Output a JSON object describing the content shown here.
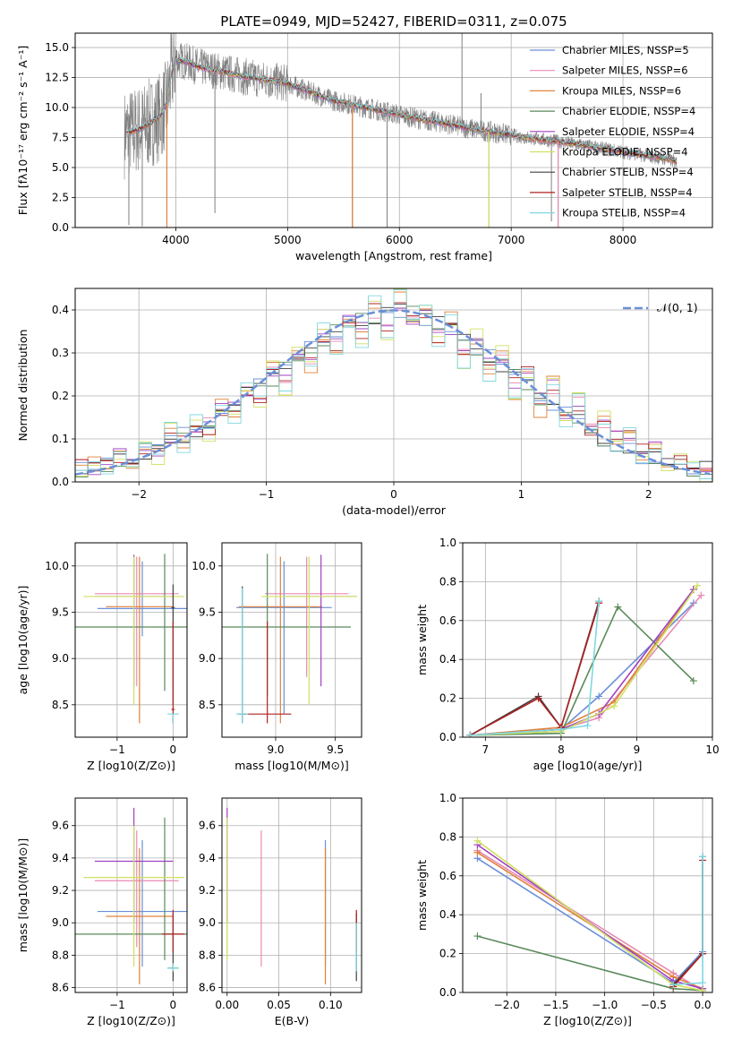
{
  "colors": {
    "chabrier_miles": "#6a8fd8",
    "salpeter_miles": "#e88ab4",
    "kroupa_miles": "#e0823a",
    "chabrier_elodie": "#5a8a5a",
    "salpeter_elodie": "#a040c0",
    "kroupa_elodie": "#d0e060",
    "chabrier_stelib": "#404040",
    "salpeter_stelib": "#b02020",
    "kroupa_stelib": "#80d8e0",
    "data": "#808080",
    "normal": "#6a8fd8",
    "grid": "#b0b0b0"
  },
  "chart_data": [
    {
      "type": "line",
      "title": "PLATE=0949, MJD=52427, FIBERID=0311, z=0.075",
      "xlabel": "wavelength [Angstrom, rest frame]",
      "ylabel": "Flux [fλ10⁻¹⁷ erg cm⁻² s⁻¹ A⁻¹]",
      "xlim": [
        3100,
        8800
      ],
      "ylim": [
        0,
        16.2
      ],
      "xticks": [
        4000,
        5000,
        6000,
        7000,
        8000
      ],
      "yticks": [
        0.0,
        2.5,
        5.0,
        7.5,
        10.0,
        12.5,
        15.0
      ],
      "grid": true,
      "legend_position": "top-right",
      "legend": [
        "Chabrier MILES, NSSP=5",
        "Salpeter MILES, NSSP=6",
        "Kroupa MILES, NSSP=6",
        "Chabrier ELODIE, NSSP=4",
        "Salpeter ELODIE, NSSP=4",
        "Kroupa ELODIE, NSSP=4",
        "Chabrier STELIB, NSSP=4",
        "Salpeter STELIB, NSSP=4",
        "Kroupa STELIB, NSSP=4"
      ],
      "model_continuum": {
        "x": [
          3550,
          3700,
          3850,
          3920,
          3960,
          4000,
          4100,
          4200,
          4400,
          4600,
          4800,
          5000,
          5200,
          5400,
          5600,
          5800,
          6000,
          6200,
          6400,
          6600,
          6800,
          7000,
          7200,
          7400,
          7600,
          7800,
          8000,
          8200,
          8400,
          8500
        ],
        "y": [
          7.8,
          8.3,
          9.2,
          10.3,
          12.8,
          14.0,
          13.8,
          13.4,
          13.0,
          12.6,
          12.3,
          12.0,
          11.3,
          10.6,
          10.2,
          9.8,
          9.4,
          9.0,
          8.7,
          8.3,
          8.0,
          7.7,
          7.4,
          7.2,
          6.9,
          6.6,
          6.3,
          6.0,
          5.7,
          5.4
        ]
      },
      "data_spikes": [
        {
          "x": 3580,
          "y": 0.2
        },
        {
          "x": 3700,
          "y": 0.1
        },
        {
          "x": 4350,
          "y": 1.2
        },
        {
          "x": 5580,
          "y": 0.0
        },
        {
          "x": 5890,
          "y": 0.0
        },
        {
          "x": 6560,
          "y": 16.2
        },
        {
          "x": 6730,
          "y": 11.2
        },
        {
          "x": 6800,
          "y": 0.0
        },
        {
          "x": 7360,
          "y": 0.5
        },
        {
          "x": 7420,
          "y": 0.0
        }
      ]
    },
    {
      "type": "bar",
      "xlabel": "(data-model)/error",
      "ylabel": "Normed distribution",
      "xlim": [
        -2.5,
        2.5
      ],
      "ylim": [
        0,
        0.45
      ],
      "xticks": [
        -2,
        -1,
        0,
        1,
        2
      ],
      "yticks": [
        0.0,
        0.1,
        0.2,
        0.3,
        0.4
      ],
      "grid": true,
      "legend": [
        "𝒩(0, 1)"
      ],
      "legend_position": "top-right",
      "bin_edges": [
        -2.5,
        -2.4,
        -2.3,
        -2.2,
        -2.1,
        -2.0,
        -1.9,
        -1.8,
        -1.7,
        -1.6,
        -1.5,
        -1.4,
        -1.3,
        -1.2,
        -1.1,
        -1.0,
        -0.9,
        -0.8,
        -0.7,
        -0.6,
        -0.5,
        -0.4,
        -0.3,
        -0.2,
        -0.1,
        0.0,
        0.1,
        0.2,
        0.3,
        0.4,
        0.5,
        0.6,
        0.7,
        0.8,
        0.9,
        1.0,
        1.1,
        1.2,
        1.3,
        1.4,
        1.5,
        1.6,
        1.7,
        1.8,
        1.9,
        2.0,
        2.1,
        2.2,
        2.3,
        2.4,
        2.5
      ],
      "series": [
        {
          "values": [
            0.03,
            0.04,
            0.04,
            0.05,
            0.06,
            0.07,
            0.08,
            0.09,
            0.11,
            0.12,
            0.14,
            0.15,
            0.18,
            0.2,
            0.22,
            0.24,
            0.26,
            0.29,
            0.31,
            0.33,
            0.35,
            0.37,
            0.38,
            0.38,
            0.39,
            0.4,
            0.39,
            0.38,
            0.37,
            0.35,
            0.33,
            0.31,
            0.29,
            0.27,
            0.25,
            0.22,
            0.2,
            0.18,
            0.16,
            0.14,
            0.12,
            0.1,
            0.09,
            0.07,
            0.06,
            0.05,
            0.04,
            0.04,
            0.03,
            0.03
          ]
        },
        {
          "values": [
            0.04,
            0.03,
            0.05,
            0.06,
            0.05,
            0.08,
            0.07,
            0.1,
            0.1,
            0.13,
            0.13,
            0.17,
            0.17,
            0.21,
            0.2,
            0.25,
            0.24,
            0.3,
            0.28,
            0.34,
            0.32,
            0.38,
            0.35,
            0.4,
            0.37,
            0.41,
            0.38,
            0.4,
            0.34,
            0.36,
            0.3,
            0.33,
            0.27,
            0.29,
            0.23,
            0.25,
            0.19,
            0.22,
            0.15,
            0.18,
            0.12,
            0.14,
            0.1,
            0.11,
            0.07,
            0.08,
            0.05,
            0.06,
            0.04,
            0.03
          ]
        },
        {
          "values": [
            0.02,
            0.05,
            0.03,
            0.07,
            0.04,
            0.09,
            0.06,
            0.12,
            0.08,
            0.14,
            0.11,
            0.18,
            0.14,
            0.23,
            0.18,
            0.27,
            0.21,
            0.31,
            0.26,
            0.35,
            0.3,
            0.37,
            0.33,
            0.42,
            0.35,
            0.43,
            0.36,
            0.41,
            0.32,
            0.38,
            0.28,
            0.34,
            0.25,
            0.3,
            0.21,
            0.26,
            0.17,
            0.23,
            0.14,
            0.19,
            0.11,
            0.15,
            0.08,
            0.12,
            0.06,
            0.09,
            0.04,
            0.06,
            0.03,
            0.02
          ]
        }
      ],
      "normal": {
        "mu": 0,
        "sigma": 1
      }
    },
    {
      "type": "scatter",
      "xlabel": "Z [log10(Z/Z⊙)]",
      "ylabel": "age  [log10(age/yr)]",
      "xlim": [
        -1.75,
        0.25
      ],
      "ylim": [
        8.15,
        10.25
      ],
      "xticks": [
        -1,
        0
      ],
      "yticks": [
        8.5,
        9.0,
        9.5,
        10.0
      ],
      "grid": true,
      "points": [
        {
          "x": -0.55,
          "y": 9.54,
          "xerr": 0.8,
          "yerr_lo": 9.24,
          "yerr_hi": 10.05,
          "color": "chabrier_miles"
        },
        {
          "x": -0.65,
          "y": 9.7,
          "xerr": 0.75,
          "yerr_lo": 8.7,
          "yerr_hi": 10.1,
          "color": "salpeter_miles"
        },
        {
          "x": -0.6,
          "y": 9.56,
          "xerr": 0.6,
          "yerr_lo": 8.3,
          "yerr_hi": 10.1,
          "color": "kroupa_miles"
        },
        {
          "x": -0.15,
          "y": 9.34,
          "xerr": 1.6,
          "yerr_lo": 8.65,
          "yerr_hi": 10.13,
          "color": "chabrier_elodie"
        },
        {
          "x": -0.7,
          "y": 9.67,
          "xerr": 0.7,
          "yerr_lo": 8.7,
          "yerr_hi": 10.12,
          "color": "salpeter_elodie"
        },
        {
          "x": -0.7,
          "y": 9.67,
          "xerr": 0.9,
          "yerr_lo": 8.5,
          "yerr_hi": 10.1,
          "color": "kroupa_elodie"
        },
        {
          "x": 0.0,
          "y": 9.55,
          "xerr": 0.03,
          "yerr_lo": 8.5,
          "yerr_hi": 9.8,
          "color": "chabrier_stelib"
        },
        {
          "x": 0.0,
          "y": 8.45,
          "xerr": 0.03,
          "yerr_lo": 8.3,
          "yerr_hi": 9.4,
          "color": "salpeter_stelib"
        },
        {
          "x": 0.0,
          "y": 8.4,
          "xerr": 0.1,
          "yerr_lo": 8.3,
          "yerr_hi": 8.4,
          "color": "kroupa_stelib"
        }
      ]
    },
    {
      "type": "scatter",
      "xlabel": "mass [log10(M/M⊙)]",
      "ylabel": "",
      "xlim": [
        8.55,
        9.72
      ],
      "ylim": [
        8.15,
        10.25
      ],
      "xticks": [
        9.0,
        9.5
      ],
      "yticks": [
        8.5,
        9.0,
        9.5,
        10.0
      ],
      "grid": true,
      "points": [
        {
          "x": 9.07,
          "y": 9.55,
          "xerr": 0.4,
          "yerr_lo": 8.4,
          "yerr_hi": 10.05,
          "color": "chabrier_miles"
        },
        {
          "x": 9.26,
          "y": 9.7,
          "xerr": 0.35,
          "yerr_lo": 8.8,
          "yerr_hi": 10.1,
          "color": "salpeter_miles"
        },
        {
          "x": 9.04,
          "y": 9.56,
          "xerr": 0.35,
          "yerr_lo": 8.3,
          "yerr_hi": 10.1,
          "color": "kroupa_miles"
        },
        {
          "x": 8.93,
          "y": 9.34,
          "xerr": 0.7,
          "yerr_lo": 8.6,
          "yerr_hi": 10.13,
          "color": "chabrier_elodie"
        },
        {
          "x": 9.38,
          "y": 9.67,
          "xerr": 0.3,
          "yerr_lo": 8.7,
          "yerr_hi": 10.12,
          "color": "salpeter_elodie"
        },
        {
          "x": 9.28,
          "y": 9.67,
          "xerr": 0.4,
          "yerr_lo": 8.5,
          "yerr_hi": 10.1,
          "color": "kroupa_elodie"
        },
        {
          "x": 8.72,
          "y": 8.4,
          "xerr": 0.03,
          "yerr_lo": 8.3,
          "yerr_hi": 9.78,
          "color": "chabrier_stelib"
        },
        {
          "x": 8.93,
          "y": 8.4,
          "xerr": 0.2,
          "yerr_lo": 8.3,
          "yerr_hi": 9.4,
          "color": "salpeter_stelib"
        },
        {
          "x": 8.72,
          "y": 8.4,
          "xerr": 0.05,
          "yerr_lo": 8.3,
          "yerr_hi": 9.76,
          "color": "kroupa_stelib"
        }
      ]
    },
    {
      "type": "line",
      "xlabel": "age  [log10(age/yr)]",
      "ylabel": "mass weight",
      "xlim": [
        6.7,
        10.0
      ],
      "ylim": [
        0.0,
        1.0
      ],
      "xticks": [
        7,
        8,
        9,
        10
      ],
      "yticks": [
        0.0,
        0.2,
        0.4,
        0.6,
        0.8,
        1.0
      ],
      "grid": true,
      "series": [
        {
          "color": "chabrier_miles",
          "x": [
            6.8,
            8.0,
            8.5,
            9.75
          ],
          "y": [
            0.01,
            0.04,
            0.21,
            0.69
          ]
        },
        {
          "color": "salpeter_miles",
          "x": [
            6.8,
            8.0,
            8.5,
            9.85
          ],
          "y": [
            0.01,
            0.04,
            0.1,
            0.73
          ]
        },
        {
          "color": "kroupa_miles",
          "x": [
            6.8,
            8.0,
            8.7,
            9.75
          ],
          "y": [
            0.01,
            0.05,
            0.18,
            0.76
          ]
        },
        {
          "color": "chabrier_elodie",
          "x": [
            6.8,
            8.0,
            8.75,
            9.75
          ],
          "y": [
            0.01,
            0.02,
            0.67,
            0.29
          ]
        },
        {
          "color": "salpeter_elodie",
          "x": [
            6.8,
            8.0,
            8.5,
            9.75
          ],
          "y": [
            0.01,
            0.04,
            0.12,
            0.76
          ]
        },
        {
          "color": "kroupa_elodie",
          "x": [
            6.8,
            8.0,
            8.7,
            9.8
          ],
          "y": [
            0.01,
            0.03,
            0.16,
            0.78
          ]
        },
        {
          "color": "chabrier_stelib",
          "x": [
            6.8,
            7.7,
            8.0,
            8.5
          ],
          "y": [
            0.01,
            0.21,
            0.05,
            0.7
          ]
        },
        {
          "color": "salpeter_stelib",
          "x": [
            6.8,
            7.7,
            8.0,
            8.5
          ],
          "y": [
            0.01,
            0.2,
            0.05,
            0.69
          ]
        },
        {
          "color": "kroupa_stelib",
          "x": [
            6.8,
            8.0,
            8.35,
            8.5
          ],
          "y": [
            0.01,
            0.04,
            0.06,
            0.7
          ]
        }
      ]
    },
    {
      "type": "scatter",
      "xlabel": "Z [log10(Z/Z⊙)]",
      "ylabel": "mass [log10(M/M⊙)]",
      "xlim": [
        -1.75,
        0.25
      ],
      "ylim": [
        8.57,
        9.77
      ],
      "xticks": [
        -1,
        0
      ],
      "yticks": [
        8.6,
        8.8,
        9.0,
        9.2,
        9.4,
        9.6
      ],
      "grid": true,
      "points": [
        {
          "x": -0.55,
          "y": 9.07,
          "xerr": 0.8,
          "yerr_lo": 8.73,
          "yerr_hi": 9.51,
          "color": "chabrier_miles"
        },
        {
          "x": -0.65,
          "y": 9.26,
          "xerr": 0.75,
          "yerr_lo": 8.85,
          "yerr_hi": 9.57,
          "color": "salpeter_miles"
        },
        {
          "x": -0.6,
          "y": 9.04,
          "xerr": 0.6,
          "yerr_lo": 8.62,
          "yerr_hi": 9.46,
          "color": "kroupa_miles"
        },
        {
          "x": -0.15,
          "y": 8.93,
          "xerr": 1.6,
          "yerr_lo": 8.77,
          "yerr_hi": 9.65,
          "color": "chabrier_elodie"
        },
        {
          "x": -0.7,
          "y": 9.38,
          "xerr": 0.7,
          "yerr_lo": 9.0,
          "yerr_hi": 9.71,
          "color": "salpeter_elodie"
        },
        {
          "x": -0.7,
          "y": 9.28,
          "xerr": 0.9,
          "yerr_lo": 8.73,
          "yerr_hi": 9.6,
          "color": "kroupa_elodie"
        },
        {
          "x": 0.0,
          "y": 8.72,
          "xerr": 0.1,
          "yerr_lo": 8.64,
          "yerr_hi": 9.06,
          "color": "chabrier_stelib"
        },
        {
          "x": 0.0,
          "y": 8.93,
          "xerr": 0.2,
          "yerr_lo": 8.82,
          "yerr_hi": 9.08,
          "color": "salpeter_stelib"
        },
        {
          "x": 0.0,
          "y": 8.72,
          "xerr": 0.1,
          "yerr_lo": 8.7,
          "yerr_hi": 8.75,
          "color": "kroupa_stelib"
        }
      ]
    },
    {
      "type": "scatter",
      "xlabel": "E(B-V)",
      "ylabel": "",
      "xlim": [
        -0.005,
        0.13
      ],
      "ylim": [
        8.57,
        9.77
      ],
      "xticks": [
        0.0,
        0.05,
        0.1
      ],
      "yticks": [
        8.6,
        8.8,
        9.0,
        9.2,
        9.4,
        9.6
      ],
      "grid": true,
      "points": [
        {
          "x": 0.095,
          "y": 9.07,
          "yerr_lo": 8.73,
          "yerr_hi": 9.51,
          "color": "chabrier_miles"
        },
        {
          "x": 0.033,
          "y": 9.26,
          "yerr_lo": 8.73,
          "yerr_hi": 9.57,
          "color": "salpeter_miles"
        },
        {
          "x": 0.095,
          "y": 9.04,
          "yerr_lo": 8.62,
          "yerr_hi": 9.46,
          "color": "kroupa_miles"
        },
        {
          "x": 0.0,
          "y": 9.38,
          "yerr_lo": 9.0,
          "yerr_hi": 9.71,
          "color": "salpeter_elodie"
        },
        {
          "x": 0.0,
          "y": 9.28,
          "yerr_lo": 8.77,
          "yerr_hi": 9.65,
          "color": "kroupa_elodie"
        },
        {
          "x": 0.125,
          "y": 8.72,
          "yerr_lo": 8.64,
          "yerr_hi": 9.06,
          "color": "chabrier_stelib"
        },
        {
          "x": 0.125,
          "y": 8.93,
          "yerr_lo": 8.82,
          "yerr_hi": 9.08,
          "color": "salpeter_stelib"
        },
        {
          "x": 0.125,
          "y": 8.8,
          "yerr_lo": 8.7,
          "yerr_hi": 9.0,
          "color": "kroupa_stelib"
        }
      ]
    },
    {
      "type": "line",
      "xlabel": "Z [log10(Z/Z⊙)]",
      "ylabel": "mass weight",
      "xlim": [
        -2.45,
        0.1
      ],
      "ylim": [
        0.0,
        1.0
      ],
      "xticks": [
        -2.0,
        -1.5,
        -1.0,
        -0.5,
        0.0
      ],
      "yticks": [
        0.0,
        0.2,
        0.4,
        0.6,
        0.8,
        1.0
      ],
      "grid": true,
      "series": [
        {
          "color": "chabrier_miles",
          "x": [
            -2.3,
            -0.3,
            0.0
          ],
          "y": [
            0.69,
            0.05,
            0.21
          ]
        },
        {
          "color": "salpeter_miles",
          "x": [
            -2.3,
            -0.3,
            0.0
          ],
          "y": [
            0.73,
            0.1,
            0.01
          ]
        },
        {
          "color": "kroupa_miles",
          "x": [
            -2.3,
            -0.3,
            0.0
          ],
          "y": [
            0.72,
            0.08,
            0.02
          ]
        },
        {
          "color": "chabrier_elodie",
          "x": [
            -2.3,
            -0.3,
            0.0
          ],
          "y": [
            0.29,
            0.02,
            0.01
          ]
        },
        {
          "color": "salpeter_elodie",
          "x": [
            -2.3,
            -0.3,
            0.0
          ],
          "y": [
            0.76,
            0.06,
            0.02
          ]
        },
        {
          "color": "kroupa_elodie",
          "x": [
            -2.3,
            -0.3,
            0.0
          ],
          "y": [
            0.78,
            0.04,
            0.01
          ]
        },
        {
          "color": "chabrier_stelib",
          "x": [
            -0.3,
            0.0,
            0.0
          ],
          "y": [
            0.04,
            0.2,
            0.7
          ]
        },
        {
          "color": "salpeter_stelib",
          "x": [
            -0.3,
            0.0,
            0.0
          ],
          "y": [
            0.03,
            0.2,
            0.68
          ]
        },
        {
          "color": "kroupa_stelib",
          "x": [
            -0.3,
            0.0,
            0.0
          ],
          "y": [
            0.04,
            0.05,
            0.7
          ]
        }
      ]
    }
  ]
}
